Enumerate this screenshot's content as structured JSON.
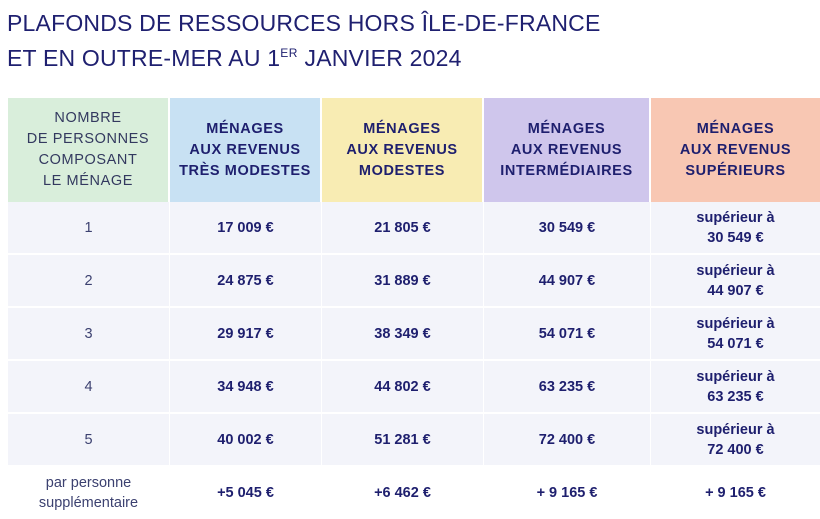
{
  "title": {
    "line1": "PLAFONDS DE RESSOURCES HORS ÎLE-DE-FRANCE",
    "line2_a": "ET EN OUTRE-MER AU 1",
    "line2_sup": "ER",
    "line2_b": " JANVIER 2024"
  },
  "headers": {
    "persons": [
      "NOMBRE",
      "DE PERSONNES",
      "COMPOSANT",
      "LE MÉNAGE"
    ],
    "tres_modestes": [
      "MÉNAGES",
      "AUX REVENUS",
      "TRÈS MODESTES"
    ],
    "modestes": [
      "MÉNAGES",
      "AUX REVENUS",
      "MODESTES"
    ],
    "intermediaires": [
      "MÉNAGES",
      "AUX REVENUS",
      "INTERMÉDIAIRES"
    ],
    "superieurs": [
      "MÉNAGES",
      "AUX REVENUS",
      "SUPÉRIEURS"
    ]
  },
  "rows": [
    {
      "persons": "1",
      "tres_modestes": "17 009 €",
      "modestes": "21 805 €",
      "intermediaires": "30 549 €",
      "superieurs": [
        "supérieur à",
        "30 549 €"
      ]
    },
    {
      "persons": "2",
      "tres_modestes": "24 875 €",
      "modestes": "31 889 €",
      "intermediaires": "44 907 €",
      "superieurs": [
        "supérieur à",
        "44 907 €"
      ]
    },
    {
      "persons": "3",
      "tres_modestes": "29 917 €",
      "modestes": "38 349 €",
      "intermediaires": "54 071 €",
      "superieurs": [
        "supérieur à",
        "54 071 €"
      ]
    },
    {
      "persons": "4",
      "tres_modestes": "34 948 €",
      "modestes": "44 802 €",
      "intermediaires": "63 235 €",
      "superieurs": [
        "supérieur à",
        "63 235 €"
      ]
    },
    {
      "persons": "5",
      "tres_modestes": "40 002 €",
      "modestes": "51 281 €",
      "intermediaires": "72 400 €",
      "superieurs": [
        "supérieur à",
        "72 400 €"
      ]
    }
  ],
  "extra_row": {
    "persons": [
      "par personne",
      "supplémentaire"
    ],
    "tres_modestes": "+5 045 €",
    "modestes": "+6 462 €",
    "intermediaires": "+ 9 165 €",
    "superieurs": "+ 9 165 €"
  },
  "colors": {
    "text": "#1e1f6e",
    "header_persons": "#d9eedb",
    "header_tres_modestes": "#c8e1f3",
    "header_modestes": "#f8ecb3",
    "header_intermediaires": "#cfc6ec",
    "header_superieurs": "#f8c7b3",
    "row_background": "#f3f4fa"
  }
}
